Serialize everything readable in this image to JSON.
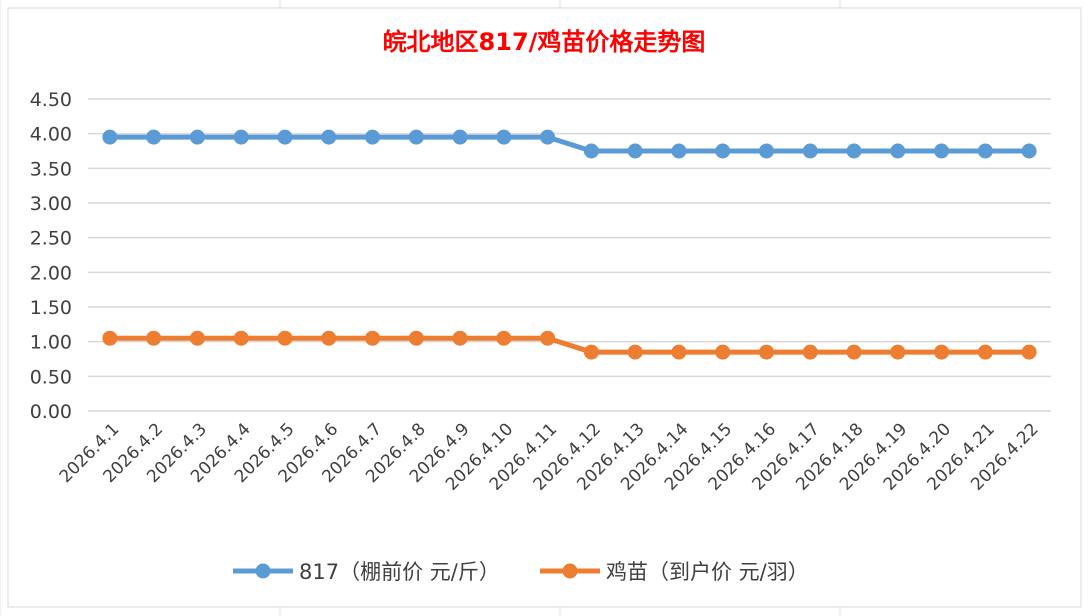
{
  "chart_data": {
    "type": "line",
    "title": "皖北地区817/鸡苗价格走势图",
    "title_color": "#FF0000",
    "xlabel": "",
    "ylabel": "",
    "ylim": [
      0,
      4.5
    ],
    "y_ticks": [
      "0.00",
      "0.50",
      "1.00",
      "1.50",
      "2.00",
      "2.50",
      "3.00",
      "3.50",
      "4.00",
      "4.50"
    ],
    "grid": true,
    "legend_position": "bottom",
    "categories": [
      "2026.4.1",
      "2026.4.2",
      "2026.4.3",
      "2026.4.4",
      "2026.4.5",
      "2026.4.6",
      "2026.4.7",
      "2026.4.8",
      "2026.4.9",
      "2026.4.10",
      "2026.4.11",
      "2026.4.12",
      "2026.4.13",
      "2026.4.14",
      "2026.4.15",
      "2026.4.16",
      "2026.4.17",
      "2026.4.18",
      "2026.4.19",
      "2026.4.20",
      "2026.4.21",
      "2026.4.22"
    ],
    "series": [
      {
        "name": "817（棚前价 元/斤）",
        "color": "#5B9BD5",
        "values": [
          3.95,
          3.95,
          3.95,
          3.95,
          3.95,
          3.95,
          3.95,
          3.95,
          3.95,
          3.95,
          3.95,
          3.75,
          3.75,
          3.75,
          3.75,
          3.75,
          3.75,
          3.75,
          3.75,
          3.75,
          3.75,
          3.75
        ]
      },
      {
        "name": "鸡苗（到户价 元/羽）",
        "color": "#ED7D31",
        "values": [
          1.05,
          1.05,
          1.05,
          1.05,
          1.05,
          1.05,
          1.05,
          1.05,
          1.05,
          1.05,
          1.05,
          0.85,
          0.85,
          0.85,
          0.85,
          0.85,
          0.85,
          0.85,
          0.85,
          0.85,
          0.85,
          0.85
        ]
      }
    ]
  }
}
